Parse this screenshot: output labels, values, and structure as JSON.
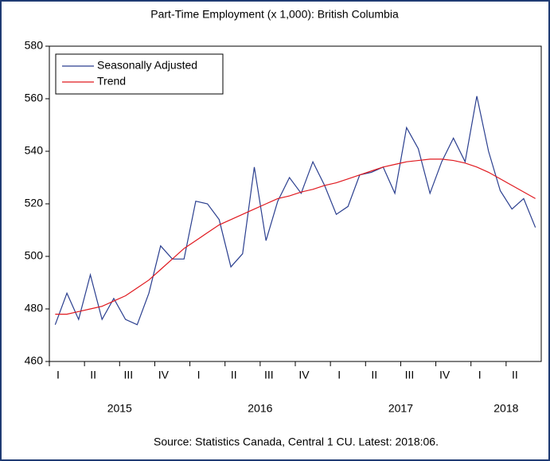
{
  "chart_data": {
    "type": "line",
    "title": "Part-Time Employment (x 1,000): British Columbia",
    "source": "Source: Statistics Canada, Central 1 CU. Latest: 2018:06.",
    "quarters": [
      "I",
      "II",
      "III",
      "IV",
      "I",
      "II",
      "III",
      "IV",
      "I",
      "II",
      "III",
      "IV",
      "I",
      "II"
    ],
    "years": [
      "2015",
      "2016",
      "2017",
      "2018"
    ],
    "series": [
      {
        "name": "Seasonally Adjusted",
        "color": "#2b3f8f",
        "values": [
          474,
          486,
          476,
          493,
          476,
          484,
          476,
          474,
          486,
          504,
          499,
          499,
          521,
          520,
          514,
          496,
          501,
          534,
          506,
          521,
          530,
          524,
          536,
          527,
          516,
          519,
          531,
          532,
          534,
          524,
          549,
          541,
          524,
          536,
          545,
          536,
          561,
          540,
          525,
          518,
          522,
          511
        ]
      },
      {
        "name": "Trend",
        "color": "#e0191f",
        "values": [
          478,
          478,
          479,
          480,
          481,
          483,
          485,
          488,
          491,
          495,
          499,
          503,
          506,
          509,
          512,
          514,
          516,
          518,
          520,
          522,
          523,
          524.5,
          525.5,
          527,
          528,
          529.5,
          531,
          532.5,
          534,
          535,
          536,
          536.5,
          537,
          537,
          536.5,
          535.5,
          534,
          532,
          529.5,
          527,
          524.5,
          522
        ]
      }
    ],
    "ylim": [
      460,
      580
    ],
    "yticks": [
      460,
      480,
      500,
      520,
      540,
      560,
      580
    ],
    "legend": "top-left"
  }
}
